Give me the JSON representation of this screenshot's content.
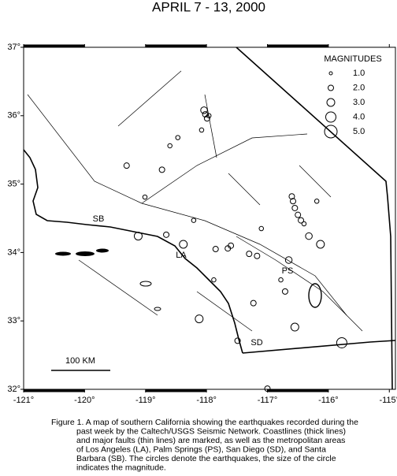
{
  "title": "APRIL 7 - 13, 2000",
  "map": {
    "lon_range": [
      -121,
      -114.9
    ],
    "lat_range": [
      32,
      37
    ],
    "lon_ticks": [
      {
        "value": -121,
        "label": "-121°"
      },
      {
        "value": -120,
        "label": "-120°"
      },
      {
        "value": -119,
        "label": "-119°"
      },
      {
        "value": -118,
        "label": "-118°"
      },
      {
        "value": -117,
        "label": "-117°"
      },
      {
        "value": -116,
        "label": "-116°"
      },
      {
        "value": -115,
        "label": "-115°"
      }
    ],
    "lat_ticks": [
      {
        "value": 32,
        "label": "32°"
      },
      {
        "value": 33,
        "label": "33°"
      },
      {
        "value": 34,
        "label": "34°"
      },
      {
        "value": 35,
        "label": "35°"
      },
      {
        "value": 36,
        "label": "36°"
      },
      {
        "value": 37,
        "label": "37°"
      }
    ],
    "legend": {
      "title": "MAGNITUDES",
      "sizes": [
        {
          "value": 1,
          "label": "1.0"
        },
        {
          "value": 2,
          "label": "2.0"
        },
        {
          "value": 3,
          "label": "3.0"
        },
        {
          "value": 4,
          "label": "4.0"
        },
        {
          "value": 5,
          "label": "5.0"
        }
      ]
    },
    "places": [
      "SB",
      "LA",
      "PS",
      "SD"
    ],
    "scale_bar": "100 KM",
    "earthquakes": [
      {
        "lon": -118.04,
        "lat": 36.08,
        "mag": 2.5
      },
      {
        "lon": -117.99,
        "lat": 35.96,
        "mag": 2
      },
      {
        "lon": -118.02,
        "lat": 36.02,
        "mag": 2
      },
      {
        "lon": -117.96,
        "lat": 36.0,
        "mag": 1.5
      },
      {
        "lon": -116.58,
        "lat": 34.75,
        "mag": 2
      },
      {
        "lon": -116.6,
        "lat": 34.82,
        "mag": 2
      },
      {
        "lon": -116.55,
        "lat": 34.65,
        "mag": 2
      },
      {
        "lon": -116.5,
        "lat": 34.55,
        "mag": 2
      },
      {
        "lon": -116.45,
        "lat": 34.47,
        "mag": 2
      },
      {
        "lon": -116.4,
        "lat": 34.42,
        "mag": 1.5
      },
      {
        "lon": -116.13,
        "lat": 34.12,
        "mag": 3
      },
      {
        "lon": -119.31,
        "lat": 35.27,
        "mag": 2
      },
      {
        "lon": -119.01,
        "lat": 34.81,
        "mag": 1.5
      },
      {
        "lon": -119.12,
        "lat": 34.24,
        "mag": 3
      },
      {
        "lon": -118.38,
        "lat": 34.12,
        "mag": 3
      },
      {
        "lon": -117.65,
        "lat": 34.06,
        "mag": 2
      },
      {
        "lon": -117.6,
        "lat": 34.1,
        "mag": 2
      },
      {
        "lon": -117.17,
        "lat": 33.95,
        "mag": 2
      },
      {
        "lon": -117.3,
        "lat": 33.98,
        "mag": 2
      },
      {
        "lon": -116.65,
        "lat": 33.89,
        "mag": 2.5
      },
      {
        "lon": -116.71,
        "lat": 33.43,
        "mag": 2
      },
      {
        "lon": -116.78,
        "lat": 33.6,
        "mag": 1.5
      },
      {
        "lon": -118.12,
        "lat": 33.03,
        "mag": 3
      },
      {
        "lon": -117.49,
        "lat": 32.71,
        "mag": 2
      },
      {
        "lon": -116.55,
        "lat": 32.91,
        "mag": 3
      },
      {
        "lon": -115.78,
        "lat": 32.68,
        "mag": 4
      },
      {
        "lon": -117.0,
        "lat": 32.01,
        "mag": 2
      },
      {
        "lon": -118.6,
        "lat": 35.56,
        "mag": 1.5
      },
      {
        "lon": -118.73,
        "lat": 35.21,
        "mag": 2
      },
      {
        "lon": -118.47,
        "lat": 35.68,
        "mag": 1.5
      },
      {
        "lon": -118.08,
        "lat": 35.79,
        "mag": 1.5
      },
      {
        "lon": -117.1,
        "lat": 34.35,
        "mag": 1.5
      },
      {
        "lon": -118.21,
        "lat": 34.47,
        "mag": 1.5
      },
      {
        "lon": -116.19,
        "lat": 34.75,
        "mag": 1.5
      },
      {
        "lon": -116.32,
        "lat": 34.24,
        "mag": 2.5
      },
      {
        "lon": -117.88,
        "lat": 33.6,
        "mag": 1.5
      },
      {
        "lon": -117.23,
        "lat": 33.26,
        "mag": 2
      },
      {
        "lon": -118.66,
        "lat": 34.26,
        "mag": 2
      },
      {
        "lon": -117.85,
        "lat": 34.05,
        "mag": 2
      }
    ]
  },
  "caption": [
    "Figure 1. A map of southern California showing the earthquakes recorded during the",
    "past week by the Caltech/USGS Seismic Network.  Coastlines (thick lines)",
    "and major faults (thin lines) are marked, as well as the metropolitan areas",
    "of Los Angeles (LA), Palm Springs (PS), San Diego (SD), and Santa",
    "Barbara (SB).  The circles denote the earthquakes, the size of the circle",
    "indicates the magnitude."
  ]
}
